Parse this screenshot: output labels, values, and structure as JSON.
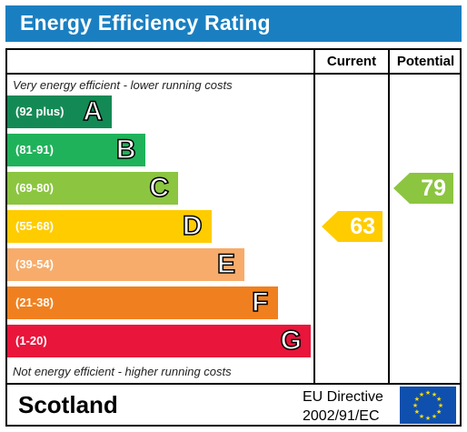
{
  "title": "Energy Efficiency Rating",
  "columns": {
    "current": "Current",
    "potential": "Potential"
  },
  "notes": {
    "top": "Very energy efficient - lower running costs",
    "bottom": "Not energy efficient - higher running costs"
  },
  "chart_data": {
    "type": "bar",
    "title": "Energy Efficiency Rating",
    "categories": [
      "A",
      "B",
      "C",
      "D",
      "E",
      "F",
      "G"
    ],
    "bands": [
      {
        "letter": "A",
        "range": "(92 plus)",
        "color": "#138a55"
      },
      {
        "letter": "B",
        "range": "(81-91)",
        "color": "#1fb25a"
      },
      {
        "letter": "C",
        "range": "(69-80)",
        "color": "#8cc540"
      },
      {
        "letter": "D",
        "range": "(55-68)",
        "color": "#ffcc00"
      },
      {
        "letter": "E",
        "range": "(39-54)",
        "color": "#f7ac6b"
      },
      {
        "letter": "F",
        "range": "(21-38)",
        "color": "#f0801f"
      },
      {
        "letter": "G",
        "range": "(1-20)",
        "color": "#e9153b"
      }
    ],
    "current": {
      "value": 63,
      "band": "D",
      "color": "#ffcc00"
    },
    "potential": {
      "value": 79,
      "band": "C",
      "color": "#8cc540"
    }
  },
  "footer": {
    "region": "Scotland",
    "directive_line1": "EU Directive",
    "directive_line2": "2002/91/EC",
    "flag_color": "#0f4fae",
    "star_color": "#ffdd00"
  }
}
